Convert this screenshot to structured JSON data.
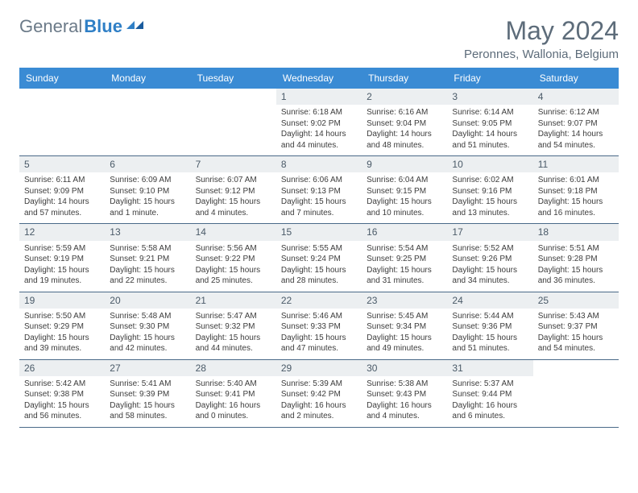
{
  "brand": {
    "name_part1": "General",
    "name_part2": "Blue"
  },
  "title": "May 2024",
  "location": "Peronnes, Wallonia, Belgium",
  "colors": {
    "header_bg": "#3a8bd4",
    "header_text": "#ffffff",
    "daynum_bg": "#eceff1",
    "rule": "#4a6a88",
    "logo_gray": "#6b7a88",
    "logo_blue": "#2f7fc6",
    "title_color": "#5d6c7a",
    "body_text": "#3c3c3c"
  },
  "days_of_week": [
    "Sunday",
    "Monday",
    "Tuesday",
    "Wednesday",
    "Thursday",
    "Friday",
    "Saturday"
  ],
  "weeks": [
    [
      null,
      null,
      null,
      {
        "n": "1",
        "sunrise": "6:18 AM",
        "sunset": "9:02 PM",
        "daylight": "14 hours and 44 minutes."
      },
      {
        "n": "2",
        "sunrise": "6:16 AM",
        "sunset": "9:04 PM",
        "daylight": "14 hours and 48 minutes."
      },
      {
        "n": "3",
        "sunrise": "6:14 AM",
        "sunset": "9:05 PM",
        "daylight": "14 hours and 51 minutes."
      },
      {
        "n": "4",
        "sunrise": "6:12 AM",
        "sunset": "9:07 PM",
        "daylight": "14 hours and 54 minutes."
      }
    ],
    [
      {
        "n": "5",
        "sunrise": "6:11 AM",
        "sunset": "9:09 PM",
        "daylight": "14 hours and 57 minutes."
      },
      {
        "n": "6",
        "sunrise": "6:09 AM",
        "sunset": "9:10 PM",
        "daylight": "15 hours and 1 minute."
      },
      {
        "n": "7",
        "sunrise": "6:07 AM",
        "sunset": "9:12 PM",
        "daylight": "15 hours and 4 minutes."
      },
      {
        "n": "8",
        "sunrise": "6:06 AM",
        "sunset": "9:13 PM",
        "daylight": "15 hours and 7 minutes."
      },
      {
        "n": "9",
        "sunrise": "6:04 AM",
        "sunset": "9:15 PM",
        "daylight": "15 hours and 10 minutes."
      },
      {
        "n": "10",
        "sunrise": "6:02 AM",
        "sunset": "9:16 PM",
        "daylight": "15 hours and 13 minutes."
      },
      {
        "n": "11",
        "sunrise": "6:01 AM",
        "sunset": "9:18 PM",
        "daylight": "15 hours and 16 minutes."
      }
    ],
    [
      {
        "n": "12",
        "sunrise": "5:59 AM",
        "sunset": "9:19 PM",
        "daylight": "15 hours and 19 minutes."
      },
      {
        "n": "13",
        "sunrise": "5:58 AM",
        "sunset": "9:21 PM",
        "daylight": "15 hours and 22 minutes."
      },
      {
        "n": "14",
        "sunrise": "5:56 AM",
        "sunset": "9:22 PM",
        "daylight": "15 hours and 25 minutes."
      },
      {
        "n": "15",
        "sunrise": "5:55 AM",
        "sunset": "9:24 PM",
        "daylight": "15 hours and 28 minutes."
      },
      {
        "n": "16",
        "sunrise": "5:54 AM",
        "sunset": "9:25 PM",
        "daylight": "15 hours and 31 minutes."
      },
      {
        "n": "17",
        "sunrise": "5:52 AM",
        "sunset": "9:26 PM",
        "daylight": "15 hours and 34 minutes."
      },
      {
        "n": "18",
        "sunrise": "5:51 AM",
        "sunset": "9:28 PM",
        "daylight": "15 hours and 36 minutes."
      }
    ],
    [
      {
        "n": "19",
        "sunrise": "5:50 AM",
        "sunset": "9:29 PM",
        "daylight": "15 hours and 39 minutes."
      },
      {
        "n": "20",
        "sunrise": "5:48 AM",
        "sunset": "9:30 PM",
        "daylight": "15 hours and 42 minutes."
      },
      {
        "n": "21",
        "sunrise": "5:47 AM",
        "sunset": "9:32 PM",
        "daylight": "15 hours and 44 minutes."
      },
      {
        "n": "22",
        "sunrise": "5:46 AM",
        "sunset": "9:33 PM",
        "daylight": "15 hours and 47 minutes."
      },
      {
        "n": "23",
        "sunrise": "5:45 AM",
        "sunset": "9:34 PM",
        "daylight": "15 hours and 49 minutes."
      },
      {
        "n": "24",
        "sunrise": "5:44 AM",
        "sunset": "9:36 PM",
        "daylight": "15 hours and 51 minutes."
      },
      {
        "n": "25",
        "sunrise": "5:43 AM",
        "sunset": "9:37 PM",
        "daylight": "15 hours and 54 minutes."
      }
    ],
    [
      {
        "n": "26",
        "sunrise": "5:42 AM",
        "sunset": "9:38 PM",
        "daylight": "15 hours and 56 minutes."
      },
      {
        "n": "27",
        "sunrise": "5:41 AM",
        "sunset": "9:39 PM",
        "daylight": "15 hours and 58 minutes."
      },
      {
        "n": "28",
        "sunrise": "5:40 AM",
        "sunset": "9:41 PM",
        "daylight": "16 hours and 0 minutes."
      },
      {
        "n": "29",
        "sunrise": "5:39 AM",
        "sunset": "9:42 PM",
        "daylight": "16 hours and 2 minutes."
      },
      {
        "n": "30",
        "sunrise": "5:38 AM",
        "sunset": "9:43 PM",
        "daylight": "16 hours and 4 minutes."
      },
      {
        "n": "31",
        "sunrise": "5:37 AM",
        "sunset": "9:44 PM",
        "daylight": "16 hours and 6 minutes."
      },
      null
    ]
  ],
  "labels": {
    "sunrise": "Sunrise: ",
    "sunset": "Sunset: ",
    "daylight": "Daylight: "
  }
}
